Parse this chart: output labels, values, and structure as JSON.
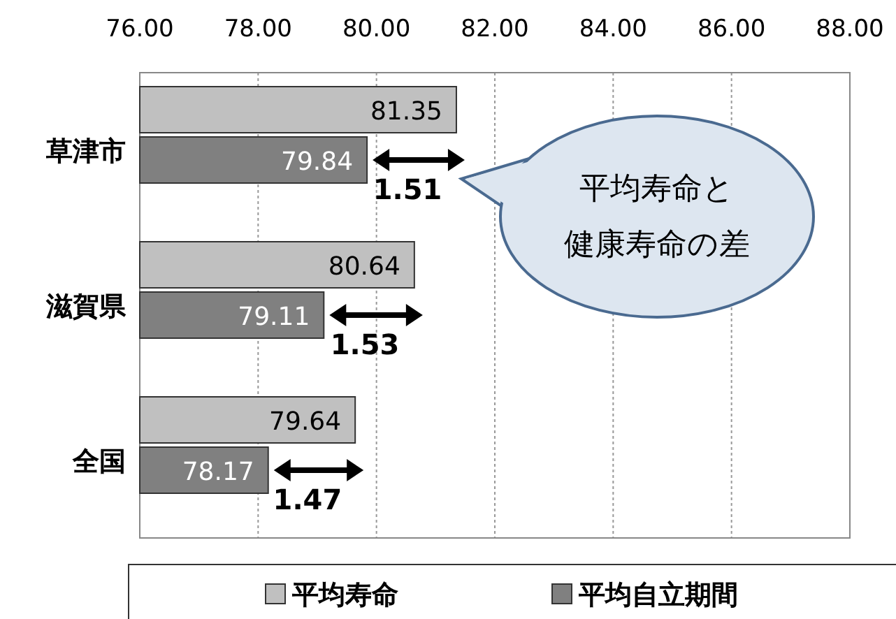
{
  "chart_data": {
    "type": "bar",
    "orientation": "horizontal",
    "categories": [
      "草津市",
      "滋賀県",
      "全国"
    ],
    "series": [
      {
        "name": "平均寿命",
        "color": "#c0c0c0",
        "values": [
          81.35,
          80.64,
          79.64
        ]
      },
      {
        "name": "平均自立期間",
        "color": "#808080",
        "values": [
          79.84,
          79.11,
          78.17
        ]
      }
    ],
    "xlim": [
      76,
      88
    ],
    "xticks": [
      {
        "value": 76,
        "label": "76.00"
      },
      {
        "value": 78,
        "label": "78.00"
      },
      {
        "value": 80,
        "label": "80.00"
      },
      {
        "value": 82,
        "label": "82.00"
      },
      {
        "value": 84,
        "label": "84.00"
      },
      {
        "value": 86,
        "label": "86.00"
      },
      {
        "value": 88,
        "label": "88.00"
      }
    ],
    "grid": "x",
    "data_labels": true,
    "legend": "bottom",
    "annotations": [
      "1.51",
      "1.53",
      "1.47",
      "平均寿命と健康寿命の差"
    ]
  }
}
